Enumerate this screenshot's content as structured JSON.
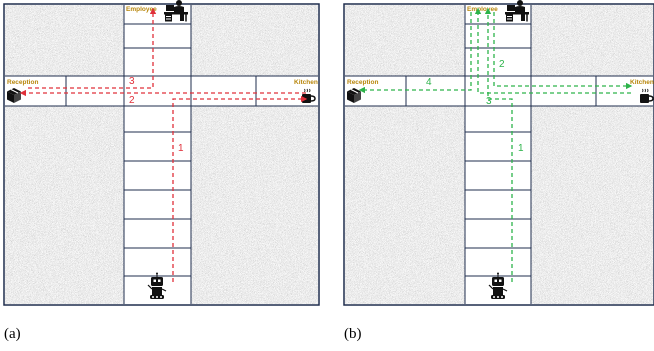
{
  "panels": [
    {
      "caption": "(a)",
      "locations": {
        "top": "Employee",
        "left": "Reception",
        "right": "Kitchen"
      },
      "path_color": "#e0303a",
      "steps": [
        "1",
        "2",
        "3"
      ]
    },
    {
      "caption": "(b)",
      "locations": {
        "top": "Employee",
        "left": "Reception",
        "right": "Kitchen"
      },
      "path_color": "#2db34a",
      "steps": [
        "1",
        "2",
        "3",
        "4"
      ]
    }
  ],
  "icons": [
    "robot-icon",
    "employee-desk-icon",
    "reception-box-icon",
    "coffee-cup-icon"
  ]
}
